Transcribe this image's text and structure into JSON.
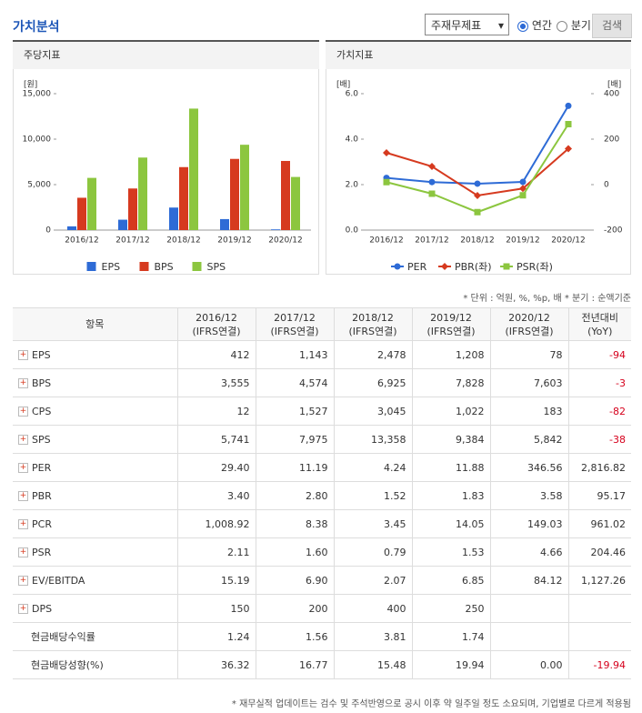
{
  "header": {
    "title": "가치분석",
    "select": "주재무제표",
    "radios": [
      "연간",
      "분기"
    ],
    "button": "검색"
  },
  "chart_data": [
    {
      "type": "bar",
      "title": "주당지표",
      "y_unit": "[원]",
      "categories": [
        "2016/12",
        "2017/12",
        "2018/12",
        "2019/12",
        "2020/12"
      ],
      "series": [
        {
          "name": "EPS",
          "color": "#2e6bd6",
          "values": [
            412,
            1143,
            2478,
            1208,
            78
          ]
        },
        {
          "name": "BPS",
          "color": "#d63a1f",
          "values": [
            3555,
            4574,
            6925,
            7828,
            7603
          ]
        },
        {
          "name": "SPS",
          "color": "#8cc63f",
          "values": [
            5741,
            7975,
            13358,
            9384,
            5842
          ]
        }
      ],
      "ylim": [
        0,
        15000
      ],
      "yticks": [
        0,
        {
          "value": 5000,
          "label": "5,000"
        },
        {
          "value": 10000,
          "label": "10,000"
        },
        {
          "value": 15000,
          "label": "15,000"
        }
      ]
    },
    {
      "type": "line",
      "title": "가치지표",
      "y_unit": "[배]",
      "y2_unit": "[배]",
      "categories": [
        "2016/12",
        "2017/12",
        "2018/12",
        "2019/12",
        "2020/12"
      ],
      "series": [
        {
          "name": "PER",
          "color": "#2e6bd6",
          "marker": "circle",
          "axis": "y2",
          "values": [
            29.4,
            11.19,
            4.24,
            11.88,
            346.56
          ]
        },
        {
          "name": "PBR(좌)",
          "color": "#d63a1f",
          "marker": "diamond",
          "values": [
            3.4,
            2.8,
            1.52,
            1.83,
            3.58
          ]
        },
        {
          "name": "PSR(좌)",
          "color": "#8cc63f",
          "marker": "square",
          "values": [
            2.11,
            1.6,
            0.79,
            1.53,
            4.66
          ]
        }
      ],
      "ylim": [
        0,
        6
      ],
      "yticks": [
        {
          "value": 0,
          "label": "0.0"
        },
        {
          "value": 2,
          "label": "2.0"
        },
        {
          "value": 4,
          "label": "4.0"
        },
        {
          "value": 6,
          "label": "6.0"
        }
      ],
      "y2lim": [
        -200,
        400
      ],
      "y2ticks": [
        -200,
        0,
        200,
        400
      ]
    }
  ],
  "note": "* 단위 : 억원, %, %p, 배   * 분기 : 순액기준",
  "table": {
    "item_header": "항목",
    "columns": [
      {
        "period": "2016/12",
        "basis": "(IFRS연결)"
      },
      {
        "period": "2017/12",
        "basis": "(IFRS연결)"
      },
      {
        "period": "2018/12",
        "basis": "(IFRS연결)"
      },
      {
        "period": "2019/12",
        "basis": "(IFRS연결)"
      },
      {
        "period": "2020/12",
        "basis": "(IFRS연결)"
      }
    ],
    "yoy_header": {
      "period": "전년대비",
      "basis": "(YoY)"
    },
    "rows": [
      {
        "name": "EPS",
        "expandable": true,
        "values": [
          "412",
          "1,143",
          "2,478",
          "1,208",
          "78"
        ],
        "yoy": "-94"
      },
      {
        "name": "BPS",
        "expandable": true,
        "values": [
          "3,555",
          "4,574",
          "6,925",
          "7,828",
          "7,603"
        ],
        "yoy": "-3"
      },
      {
        "name": "CPS",
        "expandable": true,
        "values": [
          "12",
          "1,527",
          "3,045",
          "1,022",
          "183"
        ],
        "yoy": "-82"
      },
      {
        "name": "SPS",
        "expandable": true,
        "values": [
          "5,741",
          "7,975",
          "13,358",
          "9,384",
          "5,842"
        ],
        "yoy": "-38"
      },
      {
        "name": "PER",
        "expandable": true,
        "values": [
          "29.40",
          "11.19",
          "4.24",
          "11.88",
          "346.56"
        ],
        "yoy": "2,816.82"
      },
      {
        "name": "PBR",
        "expandable": true,
        "values": [
          "3.40",
          "2.80",
          "1.52",
          "1.83",
          "3.58"
        ],
        "yoy": "95.17"
      },
      {
        "name": "PCR",
        "expandable": true,
        "values": [
          "1,008.92",
          "8.38",
          "3.45",
          "14.05",
          "149.03"
        ],
        "yoy": "961.02"
      },
      {
        "name": "PSR",
        "expandable": true,
        "values": [
          "2.11",
          "1.60",
          "0.79",
          "1.53",
          "4.66"
        ],
        "yoy": "204.46"
      },
      {
        "name": "EV/EBITDA",
        "expandable": true,
        "values": [
          "15.19",
          "6.90",
          "2.07",
          "6.85",
          "84.12"
        ],
        "yoy": "1,127.26"
      },
      {
        "name": "DPS",
        "expandable": true,
        "values": [
          "150",
          "200",
          "400",
          "250",
          null
        ],
        "yoy": null
      },
      {
        "name": "현금배당수익률",
        "expandable": false,
        "values": [
          "1.24",
          "1.56",
          "3.81",
          "1.74",
          null
        ],
        "yoy": null
      },
      {
        "name": "현금배당성향(%)",
        "expandable": false,
        "values": [
          "36.32",
          "16.77",
          "15.48",
          "19.94",
          "0.00"
        ],
        "yoy": "-19.94"
      }
    ]
  },
  "footer": "* 재무실적 업데이트는 검수 및 주석반영으로 공시 이후 약 일주일 정도 소요되며, 기업별로 다르게 적용됨"
}
